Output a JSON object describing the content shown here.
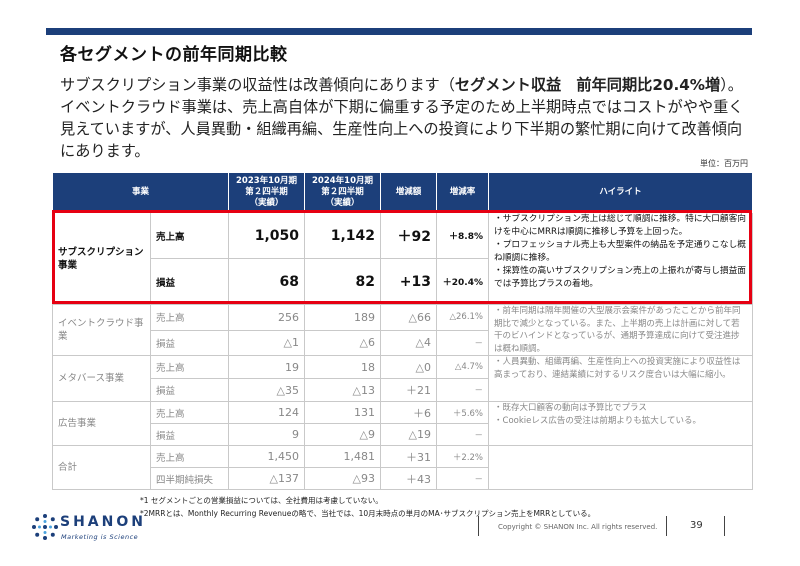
{
  "page": {
    "title": "各セグメントの前年同期比較",
    "summary_1": "サブスクリプション事業の収益性は改善傾向にあります（",
    "summary_bold": "セグメント収益　前年同期比20.4%増",
    "summary_2": "）。イベントクラウド事業は、売上高自体が下期に偏重する予定のため上半期時点ではコストがやや重く見えていますが、人員異動・組織再編、生産性向上への投資により下半期の繁忙期に向けて改善傾向にあります。",
    "unit": "単位：百万円"
  },
  "table": {
    "headers": {
      "segment": "事業",
      "prev": "2023年10月期\n第２四半期\n（実績）",
      "curr": "2024年10月期\n第２四半期\n（実績）",
      "diff": "増減額",
      "rate": "増減率",
      "highlight": "ハイライト"
    },
    "segments": [
      {
        "name": "サブスクリプション事業",
        "highlight": "・サブスクリプション売上は総じて順調に推移。特に大口顧客向けを中心にMRRは順調に推移し予算を上回った。\n・プロフェッショナル売上も大型案件の納品を予定通りこなし概ね順調に推移。\n・採算性の高いサブスクリプション売上の上振れが寄与し損益面では予算比プラスの着地。",
        "rows": [
          {
            "metric": "売上高",
            "prev": "1,050",
            "curr": "1,142",
            "diff": "＋92",
            "rate": "＋8.8%"
          },
          {
            "metric": "損益",
            "prev": "68",
            "curr": "82",
            "diff": "+13",
            "rate": "＋20.4%"
          }
        ]
      },
      {
        "name": "イベントクラウド事業",
        "highlight": "・前年同期は隔年開催の大型展示会案件があったことから前年同期比で減少となっている。また、上半期の売上は計画に対して若干のビハインドとなっているが、通期予算達成に向けて受注進捗は概ね順調。",
        "rows": [
          {
            "metric": "売上高",
            "prev": "256",
            "curr": "189",
            "diff": "△66",
            "rate": "△26.1%"
          },
          {
            "metric": "損益",
            "prev": "△1",
            "curr": "△6",
            "diff": "△4",
            "rate": "－"
          }
        ]
      },
      {
        "name": "メタバース事業",
        "highlight": "・人員異動、組織再編、生産性向上への投資実施により収益性は高まっており、連結業績に対するリスク度合いは大幅に縮小。",
        "rows": [
          {
            "metric": "売上高",
            "prev": "19",
            "curr": "18",
            "diff": "△0",
            "rate": "△4.7%"
          },
          {
            "metric": "損益",
            "prev": "△35",
            "curr": "△13",
            "diff": "＋21",
            "rate": "－"
          }
        ]
      },
      {
        "name": "広告事業",
        "highlight": "・既存大口顧客の動向は予算比でプラス\n・Cookieレス広告の受注は前期よりも拡大している。",
        "rows": [
          {
            "metric": "売上高",
            "prev": "124",
            "curr": "131",
            "diff": "＋6",
            "rate": "＋5.6%"
          },
          {
            "metric": "損益",
            "prev": "9",
            "curr": "△9",
            "diff": "△19",
            "rate": "－"
          }
        ]
      },
      {
        "name": "合計",
        "highlight": "",
        "rows": [
          {
            "metric": "売上高",
            "prev": "1,450",
            "curr": "1,481",
            "diff": "＋31",
            "rate": "＋2.2%"
          },
          {
            "metric": "四半期純損失",
            "prev": "△137",
            "curr": "△93",
            "diff": "＋43",
            "rate": "－"
          }
        ]
      }
    ]
  },
  "notes": {
    "note1": "*1 セグメントごとの営業損益については、全社費用は考慮していない。",
    "note2": "*2MRRとは、Monthly Recurring Revenueの略で、当社では、10月末時点の単月のMA･サブスクリプション売上をMRRとしている。"
  },
  "footer": {
    "logo_text": "SHANON",
    "logo_tagline": "Marketing is Science",
    "copyright": "Copyright © SHANON Inc. All rights reserved.",
    "page_number": "39"
  },
  "colors": {
    "header_navy": "#1c3f7a",
    "highlight_red": "#e60012"
  }
}
